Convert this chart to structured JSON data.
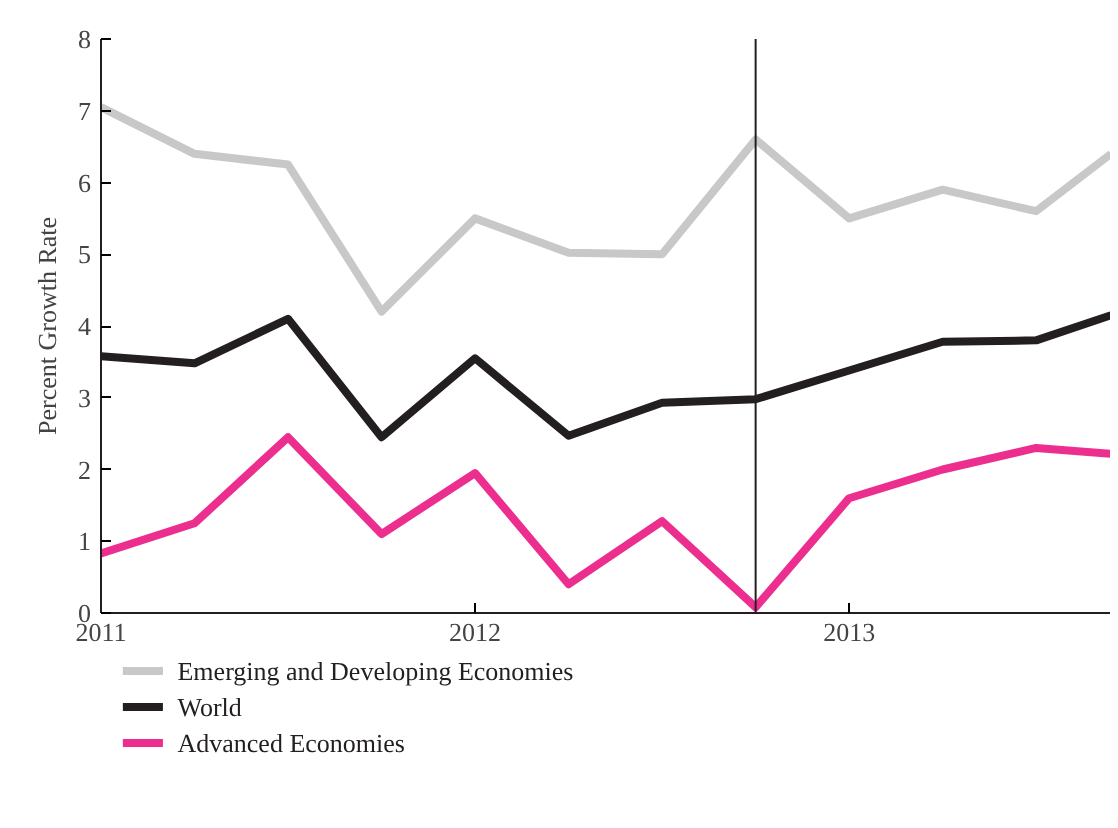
{
  "chart_data": {
    "type": "line",
    "ylabel": "Percent Growth Rate",
    "x": [
      2011,
      2011.25,
      2011.5,
      2011.75,
      2012,
      2012.25,
      2012.5,
      2012.75,
      2013,
      2013.25,
      2013.5,
      2013.7
    ],
    "xlim": [
      2011,
      2013.7
    ],
    "xticks": [
      2011,
      2012,
      2013
    ],
    "ylim": [
      0,
      8
    ],
    "yticks": [
      0,
      1,
      2,
      3,
      4,
      5,
      6,
      7,
      8
    ],
    "grid": false,
    "legend": "bottom",
    "marker": "none",
    "line_style": "solid",
    "series": [
      {
        "name": "Emerging and Developing Economies",
        "color": "#c8c8c8",
        "values": [
          7.05,
          6.4,
          6.25,
          4.2,
          5.5,
          5.02,
          5.0,
          6.6,
          5.5,
          5.9,
          5.6,
          6.4
        ]
      },
      {
        "name": "World",
        "color": "#231f20",
        "values": [
          3.58,
          3.48,
          4.1,
          2.45,
          3.55,
          2.47,
          2.93,
          2.98,
          3.38,
          3.78,
          3.8,
          4.15
        ]
      },
      {
        "name": "Advanced Economies",
        "color": "#ec2f8e",
        "values": [
          0.83,
          1.25,
          2.45,
          1.1,
          1.95,
          0.4,
          1.28,
          0.08,
          1.6,
          2.0,
          2.3,
          2.22
        ]
      }
    ],
    "ref_lines": [
      {
        "axis": "x",
        "value": 2012.75,
        "color": "#231f20",
        "line_style": "solid"
      }
    ]
  }
}
